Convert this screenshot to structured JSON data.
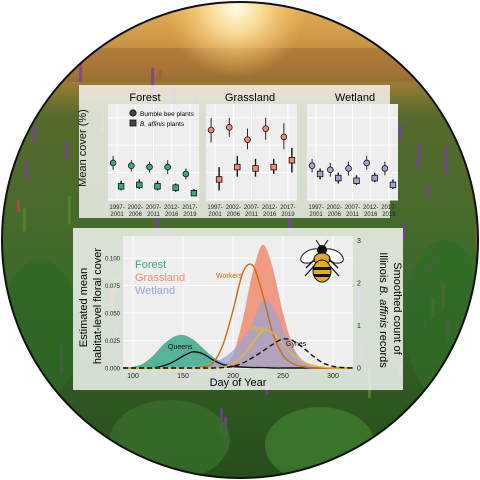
{
  "panel_titles": [
    "Forest",
    "Grassland",
    "Wetland"
  ],
  "ylabel_top": "Mean cover (%)",
  "legend": {
    "circle": "Bumble bee plants",
    "square_prefix": "B. affinis",
    "square_suffix": " plants"
  },
  "period_labels": [
    [
      "1997-",
      "2001"
    ],
    [
      "2002-",
      "2006"
    ],
    [
      "2007-",
      "2011"
    ],
    [
      "2012-",
      "2016"
    ],
    [
      "2017-",
      "2019"
    ]
  ],
  "bottom": {
    "ylabel_left": [
      "Estimated mean",
      "habitat-level floral cover"
    ],
    "ylabel_right_1": "Smoothed count of",
    "ylabel_right_2_prefix": "Illinois ",
    "ylabel_right_2_italic": "B. affinis",
    "ylabel_right_2_suffix": " records",
    "xlabel": "Day of Year",
    "legend": [
      "Forest",
      "Grassland",
      "Wetland"
    ],
    "caste_labels": [
      "Queens",
      "Workers",
      "Males",
      "Gynes"
    ]
  },
  "colors": {
    "forest": "#3aa889",
    "grassland": "#f08a70",
    "wetland": "#9ea6d2",
    "queens": "#111111",
    "workers": "#cc6a10",
    "males": "#e8b830",
    "gynes": "#111111"
  },
  "chart_data": [
    {
      "type": "scatter",
      "panel": "Forest",
      "categories": [
        "1997-2001",
        "2002-2006",
        "2007-2011",
        "2012-2016",
        "2017-2019"
      ],
      "ylim": [
        0,
        35
      ],
      "series": [
        {
          "name": "Bumble bee plants",
          "marker": "circle",
          "values": [
            13.5,
            12.5,
            12,
            12,
            9.5
          ],
          "low": [
            11,
            10.5,
            10,
            9.5,
            7.5
          ],
          "high": [
            16,
            14.5,
            14,
            14.5,
            11.5
          ]
        },
        {
          "name": "B. affinis plants",
          "marker": "square",
          "values": [
            5,
            5.5,
            5,
            4.5,
            2.5
          ],
          "low": [
            3.5,
            4,
            3.5,
            3,
            1.5
          ],
          "high": [
            7,
            7.5,
            7,
            6,
            4
          ]
        }
      ]
    },
    {
      "type": "scatter",
      "panel": "Grassland",
      "categories": [
        "1997-2001",
        "2002-2006",
        "2007-2011",
        "2012-2016",
        "2017-2019"
      ],
      "ylim": [
        0,
        35
      ],
      "series": [
        {
          "name": "Bumble bee plants",
          "marker": "circle",
          "values": [
            25.5,
            26.5,
            22,
            26,
            23
          ],
          "low": [
            21,
            23,
            18.5,
            22,
            18.5
          ],
          "high": [
            30,
            30,
            26,
            30,
            28
          ]
        },
        {
          "name": "B. affinis plants",
          "marker": "square",
          "values": [
            7.5,
            12,
            11.5,
            12,
            14.5
          ],
          "low": [
            3.5,
            8.5,
            8.5,
            9.5,
            10
          ],
          "high": [
            12,
            16,
            15,
            15,
            19
          ]
        }
      ]
    },
    {
      "type": "scatter",
      "panel": "Wetland",
      "categories": [
        "1997-2001",
        "2002-2006",
        "2007-2011",
        "2012-2016",
        "2017-2019"
      ],
      "ylim": [
        0,
        35
      ],
      "series": [
        {
          "name": "Bumble bee plants",
          "marker": "circle",
          "values": [
            12.5,
            11,
            11.5,
            13.5,
            11.5
          ],
          "low": [
            10,
            8.5,
            9,
            11,
            9
          ],
          "high": [
            15,
            13.5,
            14,
            16,
            14
          ]
        },
        {
          "name": "B. affinis plants",
          "marker": "square",
          "values": [
            9.5,
            8,
            7,
            8,
            5.5
          ],
          "low": [
            7.5,
            6,
            5.5,
            6.5,
            4
          ],
          "high": [
            11.5,
            10,
            9,
            10,
            7.5
          ]
        }
      ]
    },
    {
      "type": "area",
      "panel": "phenology",
      "xlabel": "Day of Year",
      "xlim": [
        90,
        320
      ],
      "x_ticks": [
        100,
        150,
        200,
        250,
        300
      ],
      "ylim_left": [
        0,
        0.12
      ],
      "y_ticks_left": [
        0.0,
        0.025,
        0.05,
        0.075,
        0.1
      ],
      "ylim_right": [
        0,
        3.1
      ],
      "y_ticks_right": [
        0,
        1,
        2,
        3
      ],
      "x": [
        90,
        100,
        110,
        120,
        130,
        140,
        150,
        160,
        170,
        180,
        190,
        200,
        210,
        220,
        230,
        240,
        250,
        260,
        270,
        280,
        290,
        300,
        310,
        320
      ],
      "series": [
        {
          "name": "Forest",
          "axis": "left",
          "kind": "area",
          "values": [
            0,
            0.001,
            0.004,
            0.011,
            0.021,
            0.028,
            0.03,
            0.026,
            0.018,
            0.01,
            0.005,
            0.003,
            0.002,
            0.002,
            0.002,
            0.002,
            0.001,
            0.001,
            0,
            0,
            0,
            0,
            0,
            0
          ]
        },
        {
          "name": "Grassland",
          "axis": "left",
          "kind": "area",
          "values": [
            0,
            0,
            0,
            0,
            0,
            0,
            0,
            0,
            0,
            0.001,
            0.003,
            0.012,
            0.045,
            0.088,
            0.112,
            0.09,
            0.05,
            0.02,
            0.006,
            0.001,
            0,
            0,
            0,
            0
          ]
        },
        {
          "name": "Wetland",
          "axis": "left",
          "kind": "area",
          "values": [
            0,
            0,
            0,
            0,
            0,
            0,
            0.001,
            0.002,
            0.003,
            0.005,
            0.009,
            0.016,
            0.027,
            0.042,
            0.062,
            0.055,
            0.035,
            0.017,
            0.007,
            0.002,
            0.001,
            0,
            0,
            0
          ]
        },
        {
          "name": "Queens",
          "axis": "right",
          "kind": "line",
          "values": [
            0,
            0,
            0,
            0,
            0.05,
            0.14,
            0.28,
            0.38,
            0.33,
            0.19,
            0.08,
            0.04,
            0.02,
            0.01,
            0.01,
            0,
            0,
            0,
            0,
            0,
            0,
            0,
            0,
            0
          ]
        },
        {
          "name": "Workers",
          "axis": "right",
          "kind": "line",
          "values": [
            0,
            0,
            0,
            0,
            0,
            0,
            0,
            0,
            0.03,
            0.12,
            0.55,
            1.35,
            2.25,
            2.4,
            1.7,
            0.8,
            0.3,
            0.1,
            0.03,
            0,
            0,
            0,
            0,
            0
          ]
        },
        {
          "name": "Males",
          "axis": "right",
          "kind": "line",
          "values": [
            0,
            0,
            0,
            0,
            0,
            0,
            0,
            0,
            0,
            0,
            0.02,
            0.1,
            0.3,
            0.6,
            0.88,
            0.82,
            0.55,
            0.3,
            0.15,
            0.06,
            0.02,
            0,
            0,
            0
          ]
        },
        {
          "name": "Gynes",
          "axis": "right",
          "kind": "dashed",
          "values": [
            0,
            0,
            0,
            0,
            0,
            0,
            0,
            0,
            0,
            0,
            0.01,
            0.04,
            0.12,
            0.25,
            0.4,
            0.56,
            0.68,
            0.64,
            0.48,
            0.28,
            0.12,
            0.04,
            0.01,
            0
          ]
        }
      ]
    }
  ]
}
